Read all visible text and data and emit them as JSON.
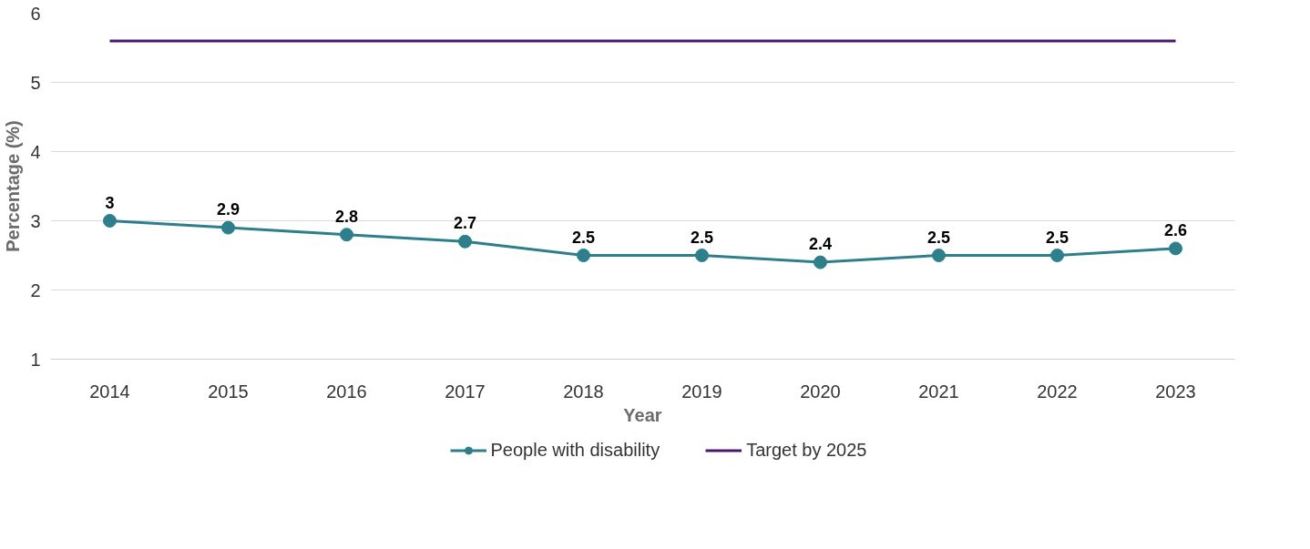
{
  "chart_data": {
    "type": "line",
    "xlabel": "Year",
    "ylabel": "Percentage (%)",
    "categories": [
      "2014",
      "2015",
      "2016",
      "2017",
      "2018",
      "2019",
      "2020",
      "2021",
      "2022",
      "2023"
    ],
    "series": [
      {
        "name": "People with disability",
        "color": "#2e7f8c",
        "marker": "circle",
        "values": [
          3,
          2.9,
          2.8,
          2.7,
          2.5,
          2.5,
          2.4,
          2.5,
          2.5,
          2.6
        ],
        "value_labels": [
          "3",
          "2.9",
          "2.8",
          "2.7",
          "2.5",
          "2.5",
          "2.4",
          "2.5",
          "2.5",
          "2.6"
        ]
      },
      {
        "name": "Target by 2025",
        "color": "#4b176b",
        "marker": "none",
        "values": [
          5.6,
          5.6,
          5.6,
          5.6,
          5.6,
          5.6,
          5.6,
          5.6,
          5.6,
          5.6
        ]
      }
    ],
    "ylim": [
      1,
      6
    ],
    "yticks": [
      1,
      2,
      3,
      4,
      5,
      6
    ],
    "grid": "y",
    "legend": "bottom",
    "line_style": "solid"
  }
}
